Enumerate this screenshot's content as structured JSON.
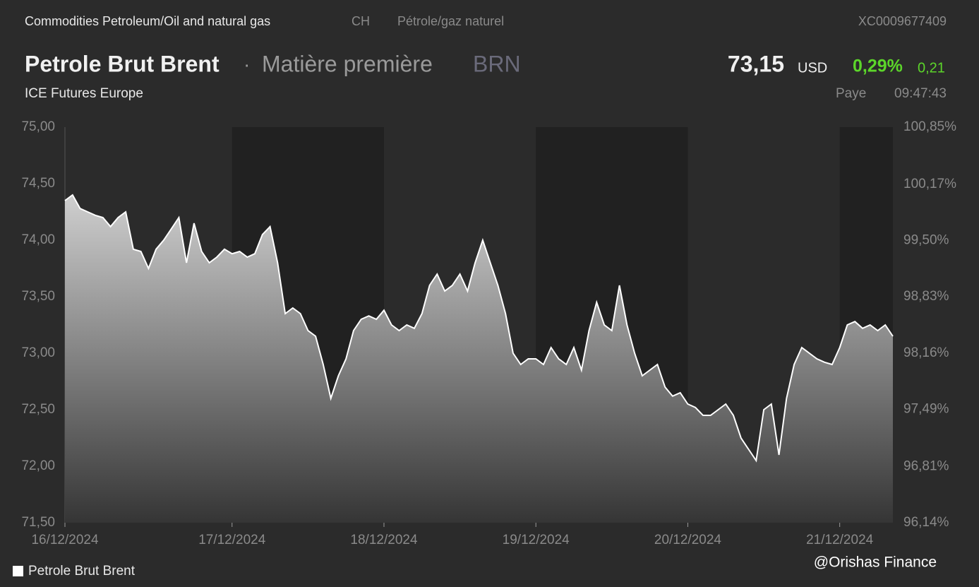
{
  "header": {
    "breadcrumb": "Commodities Petroleum/Oil and natural gas",
    "country": "CH",
    "category": "Pétrole/gaz naturel",
    "isin": "XC0009677409",
    "name": "Petrole Brut Brent",
    "separator": "·",
    "asset_type": "Matière première",
    "ticker": "BRN",
    "price": "73,15",
    "currency": "USD",
    "change_pct": "0,29%",
    "change_abs": "0,21",
    "exchange": "ICE Futures Europe",
    "status": "Paye",
    "time": "09:47:43"
  },
  "watermark": "@Orishas Finance",
  "chart_data": {
    "type": "area",
    "categories": [
      "16/12/2024",
      null,
      null,
      null,
      null,
      null,
      null,
      null,
      null,
      null,
      null,
      null,
      null,
      null,
      null,
      null,
      null,
      null,
      null,
      null,
      null,
      null,
      "17/12/2024",
      null,
      null,
      null,
      null,
      null,
      null,
      null,
      null,
      null,
      null,
      null,
      null,
      null,
      null,
      null,
      null,
      null,
      null,
      null,
      "18/12/2024",
      null,
      null,
      null,
      null,
      null,
      null,
      null,
      null,
      null,
      null,
      null,
      null,
      null,
      null,
      null,
      null,
      null,
      null,
      null,
      "19/12/2024",
      null,
      null,
      null,
      null,
      null,
      null,
      null,
      null,
      null,
      null,
      null,
      null,
      null,
      null,
      null,
      null,
      null,
      null,
      null,
      "20/12/2024",
      null,
      null,
      null,
      null,
      null,
      null,
      null,
      null,
      null,
      null,
      null,
      null,
      null,
      null,
      null,
      null,
      null,
      null,
      null,
      "21/12/2024",
      null,
      null,
      null,
      null,
      null,
      null,
      null
    ],
    "series": [
      {
        "name": "Petrole Brut Brent",
        "color": "#ffffff",
        "values": [
          74.35,
          74.4,
          74.28,
          74.25,
          74.22,
          74.2,
          74.12,
          74.2,
          74.25,
          73.92,
          73.9,
          73.75,
          73.92,
          74.0,
          74.1,
          74.2,
          73.8,
          74.15,
          73.9,
          73.8,
          73.85,
          73.92,
          73.88,
          73.9,
          73.85,
          73.88,
          74.05,
          74.12,
          73.8,
          73.35,
          73.4,
          73.35,
          73.2,
          73.15,
          72.9,
          72.6,
          72.8,
          72.95,
          73.2,
          73.3,
          73.33,
          73.3,
          73.38,
          73.25,
          73.2,
          73.25,
          73.22,
          73.35,
          73.6,
          73.7,
          73.55,
          73.6,
          73.7,
          73.55,
          73.8,
          74.0,
          73.8,
          73.6,
          73.35,
          73.0,
          72.9,
          72.95,
          72.95,
          72.9,
          73.05,
          72.95,
          72.9,
          73.05,
          72.85,
          73.2,
          73.45,
          73.25,
          73.2,
          73.6,
          73.25,
          73.0,
          72.8,
          72.85,
          72.9,
          72.7,
          72.62,
          72.65,
          72.55,
          72.52,
          72.45,
          72.45,
          72.5,
          72.55,
          72.45,
          72.25,
          72.15,
          72.05,
          72.5,
          72.55,
          72.1,
          72.6,
          72.9,
          73.05,
          73.0,
          72.95,
          72.92,
          72.9,
          73.05,
          73.25,
          73.28,
          73.22,
          73.25,
          73.2,
          73.25,
          73.15
        ]
      }
    ],
    "ylim": [
      71.5,
      75.0
    ],
    "yticks": [
      {
        "value": 75.0,
        "label": "75,00"
      },
      {
        "value": 74.5,
        "label": "74,50"
      },
      {
        "value": 74.0,
        "label": "74,00"
      },
      {
        "value": 73.5,
        "label": "73,50"
      },
      {
        "value": 73.0,
        "label": "73,00"
      },
      {
        "value": 72.5,
        "label": "72,50"
      },
      {
        "value": 72.0,
        "label": "72,00"
      },
      {
        "value": 71.5,
        "label": "71,50"
      }
    ],
    "y2lim": [
      96.14,
      100.85
    ],
    "y2ticks": [
      {
        "value": 100.85,
        "label": "100,85%"
      },
      {
        "value": 100.17,
        "label": "100,17%"
      },
      {
        "value": 99.5,
        "label": "99,50%"
      },
      {
        "value": 98.83,
        "label": "98,83%"
      },
      {
        "value": 98.16,
        "label": "98,16%"
      },
      {
        "value": 97.49,
        "label": "97,49%"
      },
      {
        "value": 96.81,
        "label": "96,81%"
      },
      {
        "value": 96.14,
        "label": "96,14%"
      }
    ],
    "legend": "bottom-left"
  }
}
